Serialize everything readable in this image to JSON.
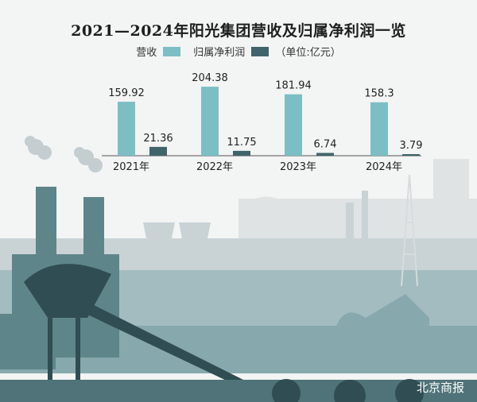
{
  "chart_data": {
    "type": "bar",
    "title": "2021—2024年阳光集团营收及归属净利润一览",
    "unit_note": "（单位:亿元）",
    "categories": [
      "2021年",
      "2022年",
      "2023年",
      "2024年"
    ],
    "series": [
      {
        "name": "营收",
        "values": [
          159.92,
          204.38,
          181.94,
          158.3
        ],
        "color": "#7bbfc4"
      },
      {
        "name": "归属净利润",
        "values": [
          21.36,
          11.75,
          6.74,
          3.79
        ],
        "color": "#3f6469"
      }
    ],
    "data_labels": true,
    "grid": false,
    "legend": "top"
  },
  "brand": "北京商报"
}
